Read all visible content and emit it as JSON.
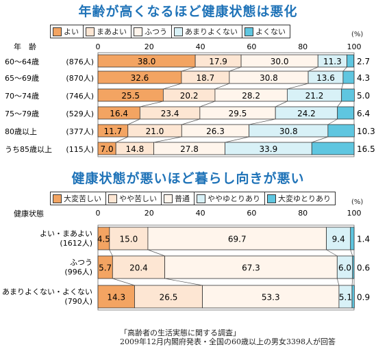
{
  "chart_data": [
    {
      "type": "bar",
      "title": "年齢が高くなるほど健康状態は悪化",
      "unit_label": "(%)",
      "axis_header": "年　齢",
      "ticks": [
        "0",
        "20",
        "40",
        "60",
        "80",
        "100"
      ],
      "xlim": [
        0,
        100
      ],
      "series": [
        {
          "name": "よい",
          "color": "#f3a462"
        },
        {
          "name": "まあよい",
          "color": "#fde6d3"
        },
        {
          "name": "ふつう",
          "color": "#fff5ec"
        },
        {
          "name": "あまりよくない",
          "color": "#d8f1f7"
        },
        {
          "name": "よくない",
          "color": "#5fc6e0"
        }
      ],
      "rows": [
        {
          "label": "60〜64歳",
          "count": "(876人)",
          "values": [
            38.0,
            17.9,
            30.0,
            11.3,
            2.7
          ],
          "texts": [
            "38.0",
            "17.9",
            "30.0",
            "11.3",
            "2.7"
          ]
        },
        {
          "label": "65〜69歳",
          "count": "(870人)",
          "values": [
            32.6,
            18.7,
            30.8,
            13.6,
            4.3
          ],
          "texts": [
            "32.6",
            "18.7",
            "30.8",
            "13.6",
            "4.3"
          ]
        },
        {
          "label": "70〜74歳",
          "count": "(746人)",
          "values": [
            25.5,
            20.2,
            28.2,
            21.2,
            5.0
          ],
          "texts": [
            "25.5",
            "20.2",
            "28.2",
            "21.2",
            "5.0"
          ]
        },
        {
          "label": "75〜79歳",
          "count": "(529人)",
          "values": [
            16.4,
            23.4,
            29.5,
            24.2,
            6.4
          ],
          "texts": [
            "16.4",
            "23.4",
            "29.5",
            "24.2",
            "6.4"
          ]
        },
        {
          "label": "80歳以上",
          "count": "(377人)",
          "values": [
            11.7,
            21.0,
            26.3,
            30.8,
            10.3
          ],
          "texts": [
            "11.7",
            "21.0",
            "26.3",
            "30.8",
            "10.3"
          ]
        },
        {
          "label": "うち85歳以上",
          "count": "(115人)",
          "values": [
            7.0,
            14.8,
            27.8,
            33.9,
            16.5
          ],
          "texts": [
            "7.0",
            "14.8",
            "27.8",
            "33.9",
            "16.5"
          ]
        }
      ]
    },
    {
      "type": "bar",
      "title": "健康状態が悪いほど暮らし向きが悪い",
      "unit_label": "(%)",
      "axis_header": "健康状態",
      "ticks": [
        "0",
        "20",
        "40",
        "60",
        "80",
        "100"
      ],
      "xlim": [
        0,
        100
      ],
      "series": [
        {
          "name": "大変苦しい",
          "color": "#f3a462"
        },
        {
          "name": "やや苦しい",
          "color": "#fde6d3"
        },
        {
          "name": "普通",
          "color": "#fff5ec"
        },
        {
          "name": "ややゆとりあり",
          "color": "#d8f1f7"
        },
        {
          "name": "大変ゆとりあり",
          "color": "#5fc6e0"
        }
      ],
      "rows": [
        {
          "label": "よい・まあよい",
          "count": "(1612人)",
          "values": [
            4.5,
            15.0,
            69.7,
            9.4,
            1.4
          ],
          "texts": [
            "4.5",
            "15.0",
            "69.7",
            "9.4",
            "1.4"
          ]
        },
        {
          "label": "ふつう",
          "count": "(996人)",
          "values": [
            5.7,
            20.4,
            67.3,
            6.0,
            0.6
          ],
          "texts": [
            "5.7",
            "20.4",
            "67.3",
            "6.0",
            "0.6"
          ]
        },
        {
          "label": "あまりよくない・よくない",
          "count": "(790人)",
          "values": [
            14.3,
            26.5,
            53.3,
            5.1,
            0.9
          ],
          "texts": [
            "14.3",
            "26.5",
            "53.3",
            "5.1",
            "0.9"
          ]
        }
      ]
    }
  ],
  "source": {
    "line1": "「高齢者の生活実態に関する調査」",
    "line2": "2009年12月内閣府発表・全国の60歳以上の男女3398人が回答"
  }
}
